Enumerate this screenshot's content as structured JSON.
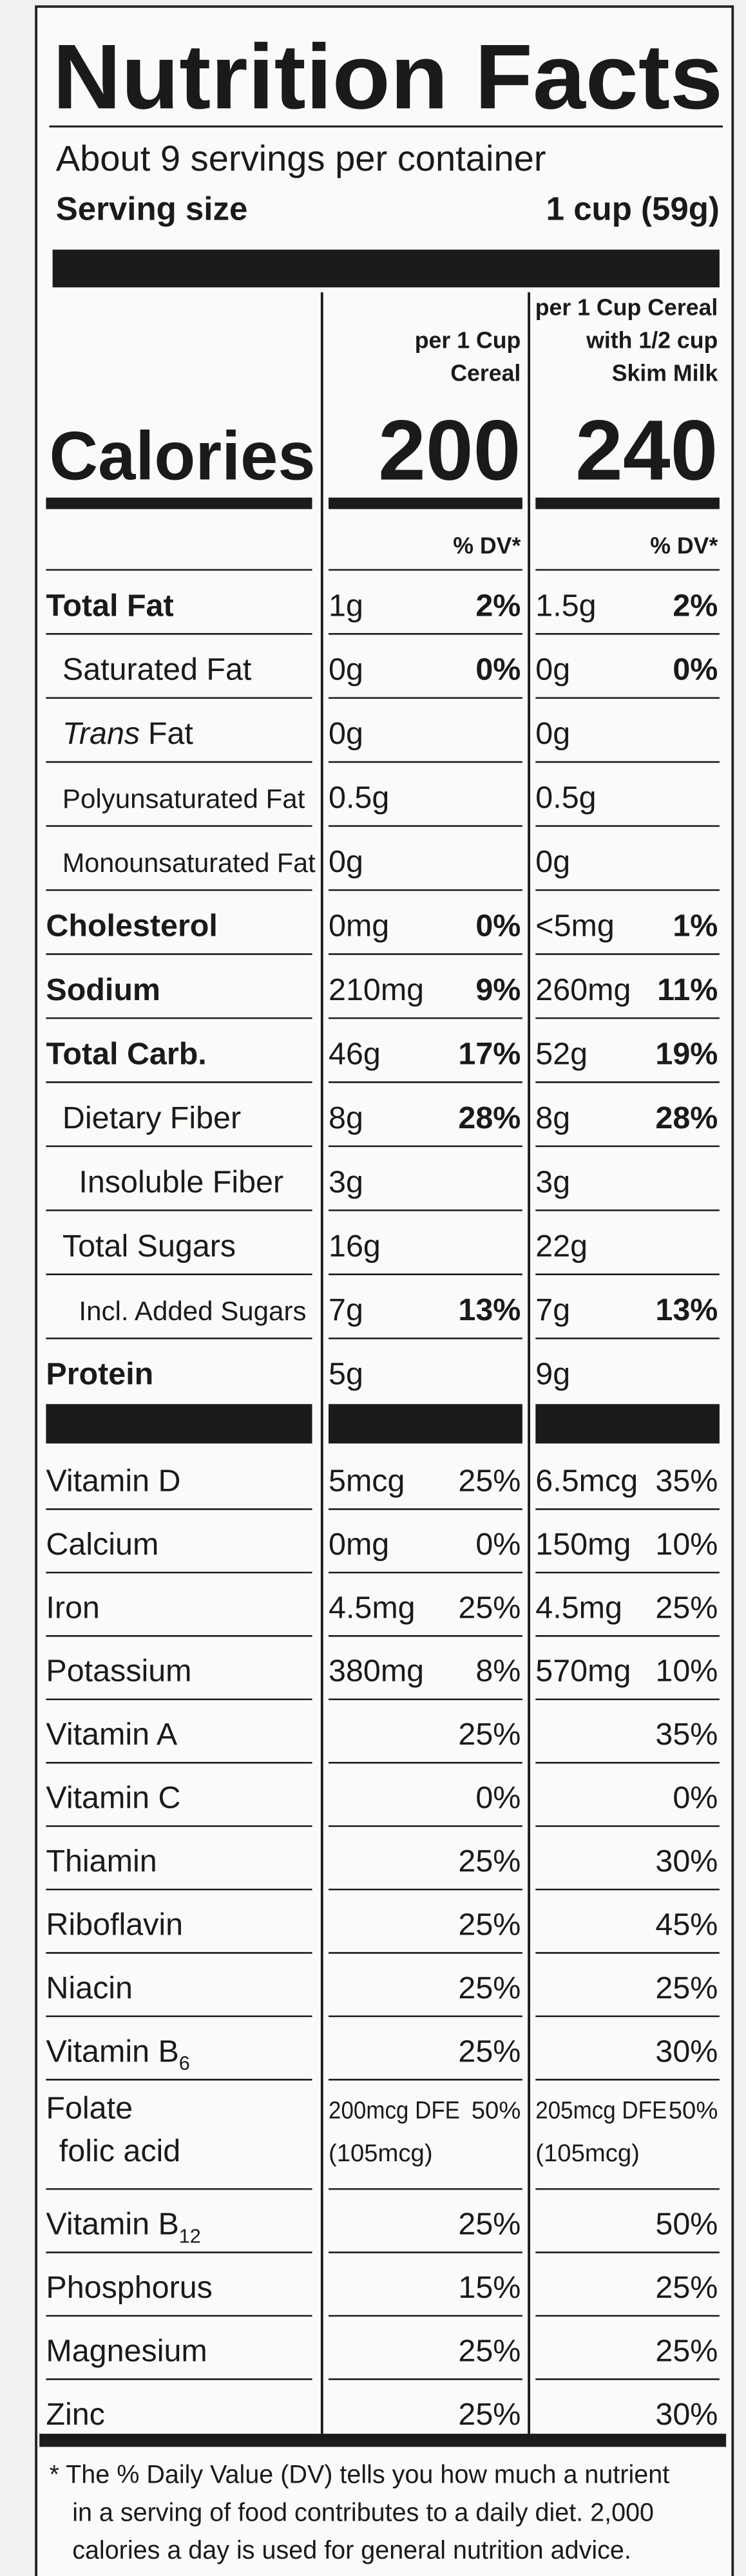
{
  "title": "Nutrition Facts",
  "servings": "About 9 servings per container",
  "serving_size": {
    "label": "Serving size",
    "value": "1 cup (59g)"
  },
  "columns": [
    [
      "per 1 Cup",
      "Cereal"
    ],
    [
      "per 1 Cup Cereal",
      "with 1/2 cup",
      "Skim Milk"
    ]
  ],
  "calories": {
    "label": "Calories",
    "values": [
      "200",
      "240"
    ]
  },
  "dv_header": [
    "% DV*",
    "% DV*"
  ],
  "nutrients": [
    {
      "name": "Total Fat",
      "bold": true,
      "level": 0,
      "c1": {
        "amt": "1g",
        "dv": "2%"
      },
      "c2": {
        "amt": "1.5g",
        "dv": "2%"
      }
    },
    {
      "name": "Saturated Fat",
      "level": 1,
      "c1": {
        "amt": "0g",
        "dv": "0%"
      },
      "c2": {
        "amt": "0g",
        "dv": "0%"
      }
    },
    {
      "name_italic": "Trans",
      "name": "Fat",
      "level": 1,
      "c1": {
        "amt": "0g"
      },
      "c2": {
        "amt": "0g"
      }
    },
    {
      "name": "Polyunsaturated Fat",
      "level": 1,
      "small": true,
      "c1": {
        "amt": "0.5g"
      },
      "c2": {
        "amt": "0.5g"
      }
    },
    {
      "name": "Monounsaturated Fat",
      "level": 1,
      "small": true,
      "c1": {
        "amt": "0g"
      },
      "c2": {
        "amt": "0g"
      }
    },
    {
      "name": "Cholesterol",
      "bold": true,
      "level": 0,
      "c1": {
        "amt": "0mg",
        "dv": "0%"
      },
      "c2": {
        "amt": "<5mg",
        "dv": "1%"
      }
    },
    {
      "name": "Sodium",
      "bold": true,
      "level": 0,
      "c1": {
        "amt": "210mg",
        "dv": "9%"
      },
      "c2": {
        "amt": "260mg",
        "dv": "11%"
      }
    },
    {
      "name": "Total Carb.",
      "bold": true,
      "level": 0,
      "c1": {
        "amt": "46g",
        "dv": "17%"
      },
      "c2": {
        "amt": "52g",
        "dv": "19%"
      }
    },
    {
      "name": "Dietary Fiber",
      "level": 1,
      "c1": {
        "amt": "8g",
        "dv": "28%"
      },
      "c2": {
        "amt": "8g",
        "dv": "28%"
      }
    },
    {
      "name": "Insoluble Fiber",
      "level": 2,
      "c1": {
        "amt": "3g"
      },
      "c2": {
        "amt": "3g"
      }
    },
    {
      "name": "Total Sugars",
      "level": 1,
      "c1": {
        "amt": "16g"
      },
      "c2": {
        "amt": "22g"
      }
    },
    {
      "name": "Incl. Added Sugars",
      "level": 2,
      "small": true,
      "c1": {
        "amt": "7g",
        "dv": "13%"
      },
      "c2": {
        "amt": "7g",
        "dv": "13%"
      }
    },
    {
      "name": "Protein",
      "bold": true,
      "level": 0,
      "c1": {
        "amt": "5g"
      },
      "c2": {
        "amt": "9g"
      }
    }
  ],
  "vitamins": [
    {
      "name": "Vitamin D",
      "c1": {
        "amt": "5mcg",
        "dv": "25%"
      },
      "c2": {
        "amt": "6.5mcg",
        "dv": "35%"
      }
    },
    {
      "name": "Calcium",
      "c1": {
        "amt": "0mg",
        "dv": "0%"
      },
      "c2": {
        "amt": "150mg",
        "dv": "10%"
      }
    },
    {
      "name": "Iron",
      "c1": {
        "amt": "4.5mg",
        "dv": "25%"
      },
      "c2": {
        "amt": "4.5mg",
        "dv": "25%"
      }
    },
    {
      "name": "Potassium",
      "c1": {
        "amt": "380mg",
        "dv": "8%"
      },
      "c2": {
        "amt": "570mg",
        "dv": "10%"
      }
    },
    {
      "name": "Vitamin A",
      "c1": {
        "dv": "25%"
      },
      "c2": {
        "dv": "35%"
      }
    },
    {
      "name": "Vitamin C",
      "c1": {
        "dv": "0%"
      },
      "c2": {
        "dv": "0%"
      }
    },
    {
      "name": "Thiamin",
      "c1": {
        "dv": "25%"
      },
      "c2": {
        "dv": "30%"
      }
    },
    {
      "name": "Riboflavin",
      "c1": {
        "dv": "25%"
      },
      "c2": {
        "dv": "45%"
      }
    },
    {
      "name": "Niacin",
      "c1": {
        "dv": "25%"
      },
      "c2": {
        "dv": "25%"
      }
    },
    {
      "name": "Vitamin B",
      "sub": "6",
      "c1": {
        "dv": "25%"
      },
      "c2": {
        "dv": "30%"
      }
    },
    {
      "name": "Folate",
      "name2": "folic acid",
      "c1": {
        "amt": "200mcg DFE",
        "dv": "50%",
        "note": "(105mcg)"
      },
      "c2": {
        "amt": "205mcg DFE",
        "dv": "50%",
        "note": "(105mcg)"
      }
    },
    {
      "name": "Vitamin B",
      "sub": "12",
      "c1": {
        "dv": "25%"
      },
      "c2": {
        "dv": "50%"
      }
    },
    {
      "name": "Phosphorus",
      "c1": {
        "dv": "15%"
      },
      "c2": {
        "dv": "25%"
      }
    },
    {
      "name": "Magnesium",
      "c1": {
        "dv": "25%"
      },
      "c2": {
        "dv": "25%"
      }
    },
    {
      "name": "Zinc",
      "c1": {
        "dv": "25%"
      },
      "c2": {
        "dv": "30%"
      }
    }
  ],
  "footnote": [
    "* The % Daily Value (DV) tells you how much a nutrient",
    "in a serving of food contributes to a daily diet. 2,000",
    "calories a day is used for general nutrition advice."
  ]
}
